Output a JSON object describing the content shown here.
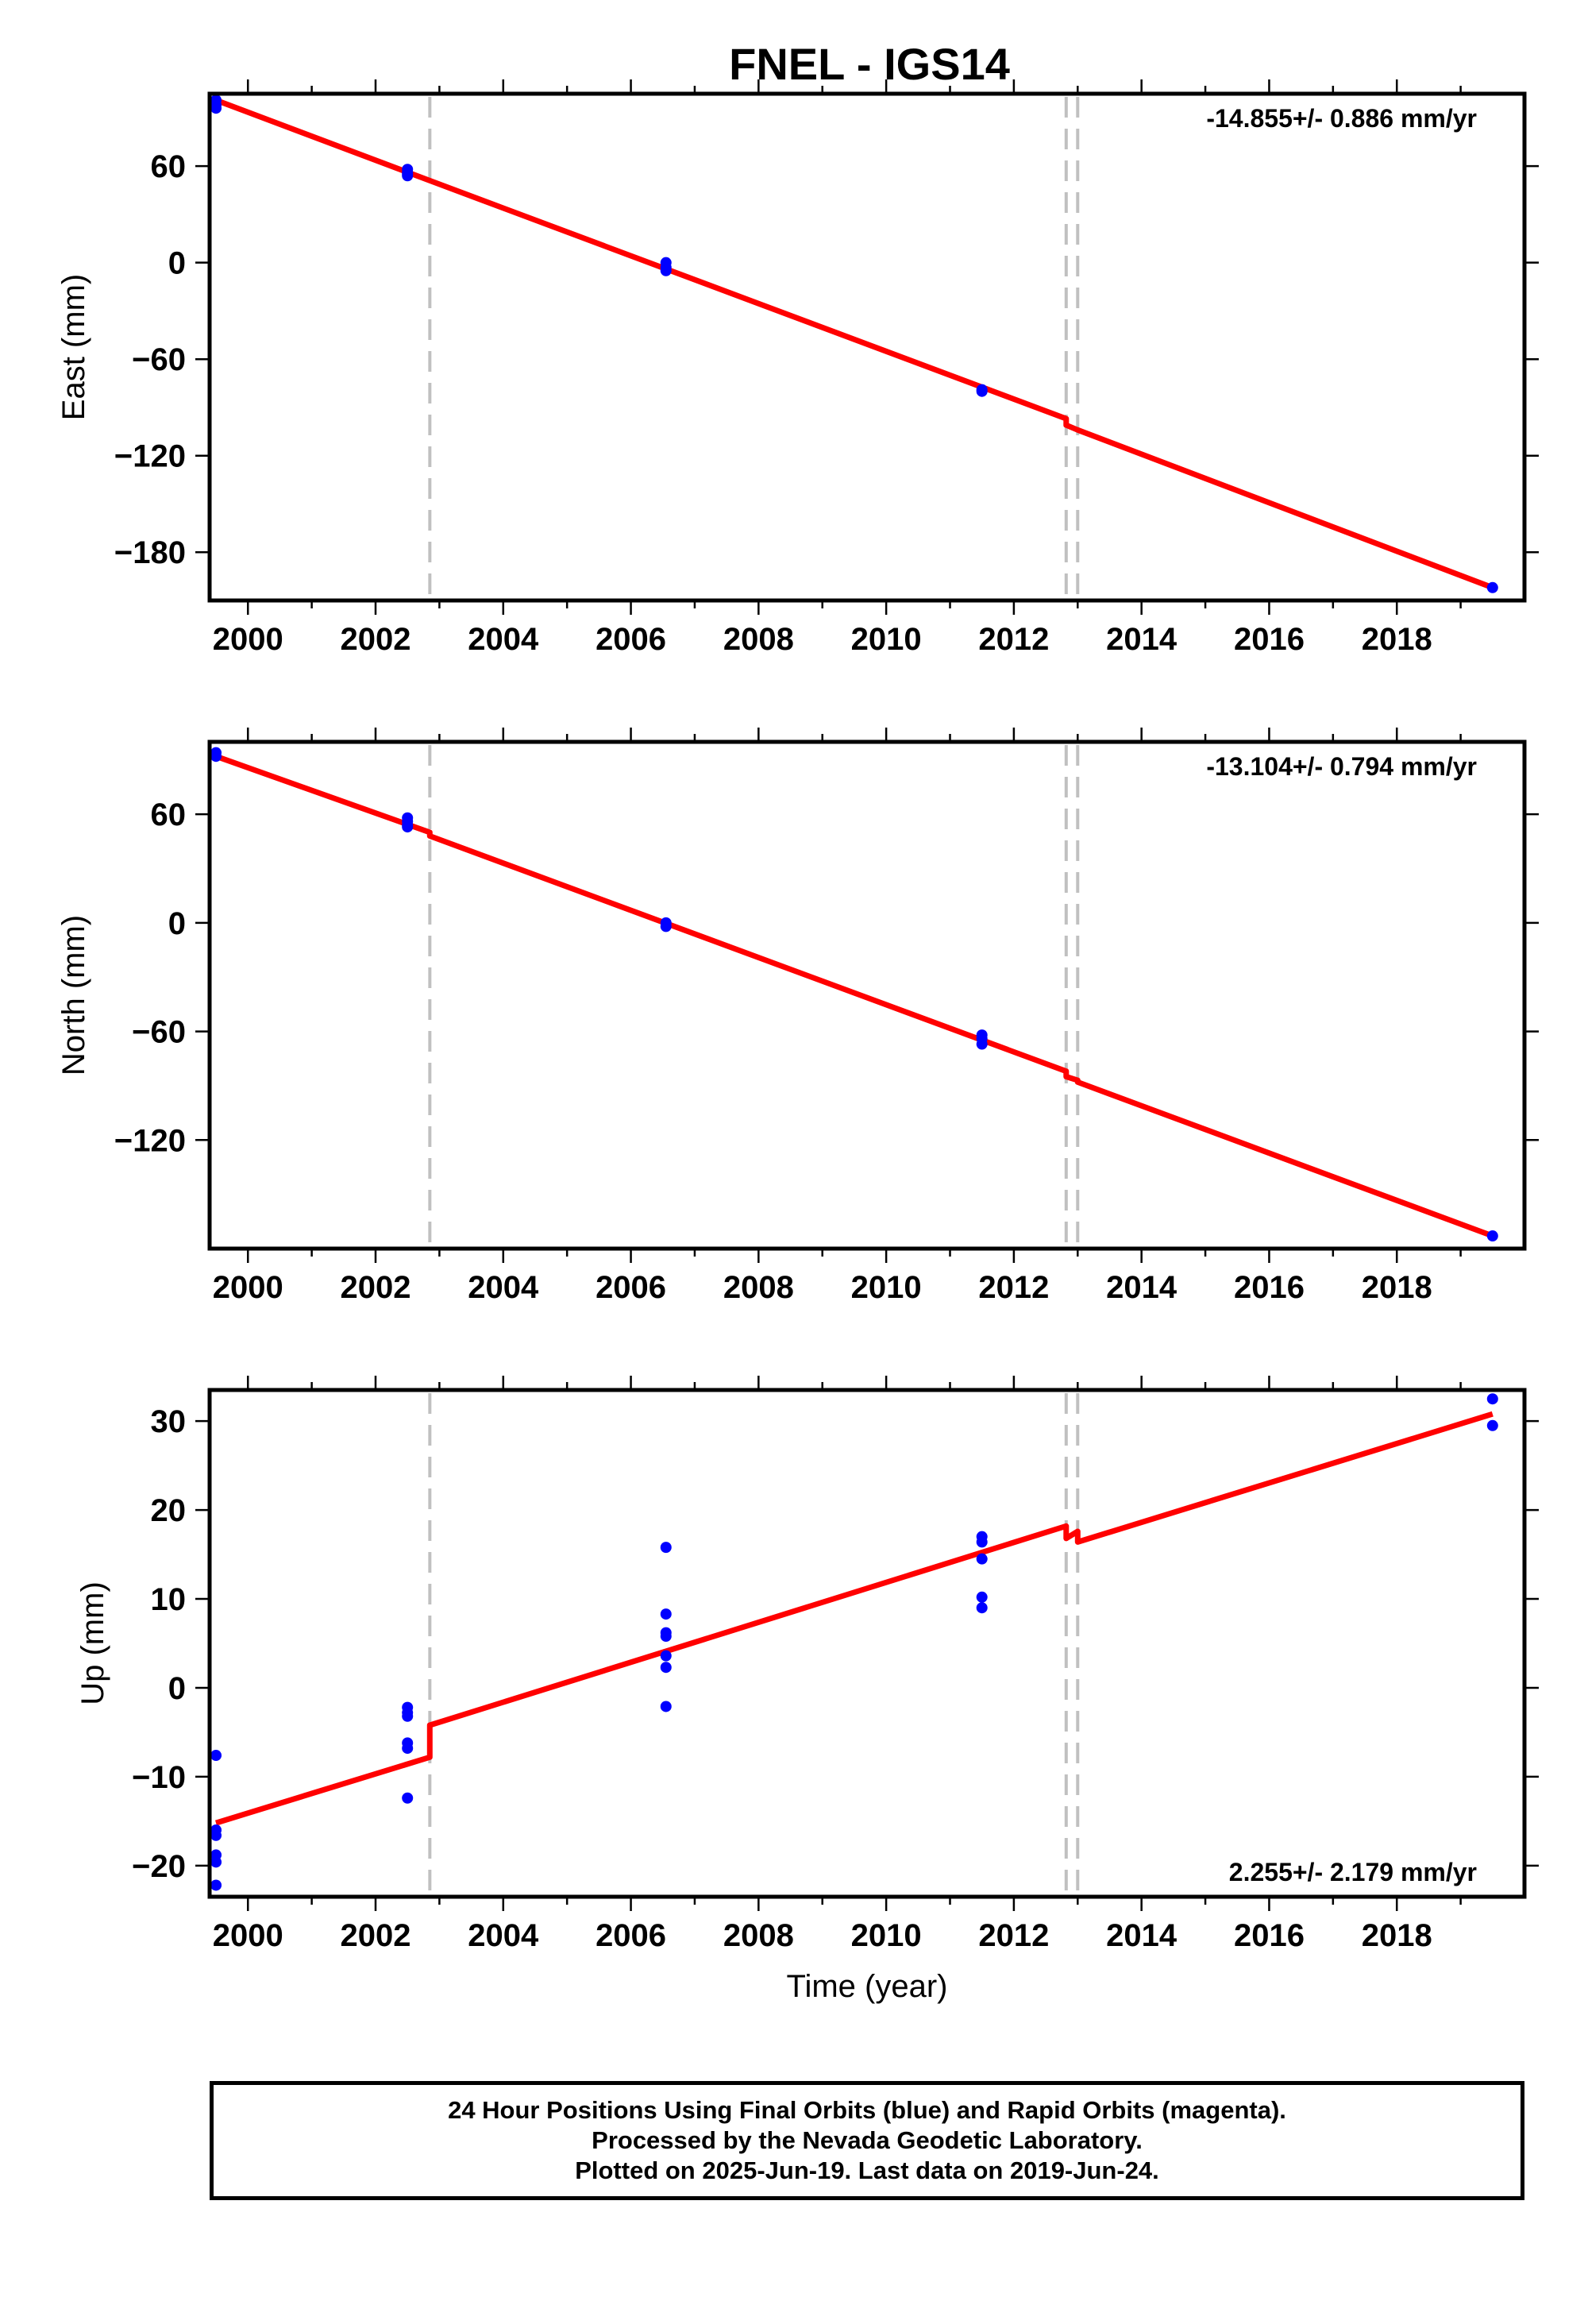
{
  "title": "FNEL - IGS14",
  "colors": {
    "fit": "#ff0000",
    "final_orbits": "#0000ff",
    "rapid_orbits": "#ff00ff",
    "break_line": "#c0c0c0"
  },
  "chart_data": [
    {
      "type": "scatter",
      "component": "east",
      "ylabel": "East (mm)",
      "xlabel": "",
      "xlim": [
        1999.4,
        2020.0
      ],
      "ylim": [
        -210,
        105
      ],
      "xticks": [
        2000,
        2002,
        2004,
        2006,
        2008,
        2010,
        2012,
        2014,
        2016,
        2018
      ],
      "yticks": [
        -180,
        -120,
        -60,
        0,
        60
      ],
      "grid": false,
      "rate_label": "-14.855+/- 0.886 mm/yr",
      "rate_position": "top-right",
      "break_epochs": [
        2002.85,
        2012.82,
        2013.0
      ],
      "fit": {
        "x": [
          1999.5,
          2002.85,
          2002.85,
          2012.82,
          2012.82,
          2013.0,
          2013.0,
          2019.5
        ],
        "y": [
          101.0,
          51.0,
          51.0,
          -97.0,
          -101.0,
          -104.0,
          -104.0,
          -202.0
        ]
      },
      "series": [
        {
          "values": [
            [
              1999.5,
              101
            ],
            [
              1999.5,
              98
            ],
            [
              1999.5,
              96
            ],
            [
              2002.5,
              58
            ],
            [
              2002.5,
              56
            ],
            [
              2002.5,
              55
            ],
            [
              2002.5,
              54
            ],
            [
              2006.55,
              0
            ],
            [
              2006.55,
              -3
            ],
            [
              2006.55,
              -5
            ],
            [
              2011.5,
              -79
            ],
            [
              2011.5,
              -80
            ],
            [
              2019.5,
              -202
            ]
          ]
        }
      ]
    },
    {
      "type": "scatter",
      "component": "north",
      "ylabel": "North (mm)",
      "xlabel": "",
      "xlim": [
        1999.4,
        2020.0
      ],
      "ylim": [
        -180,
        100
      ],
      "xticks": [
        2000,
        2002,
        2004,
        2006,
        2008,
        2010,
        2012,
        2014,
        2016,
        2018
      ],
      "yticks": [
        -120,
        -60,
        0,
        60
      ],
      "grid": false,
      "rate_label": "-13.104+/- 0.794 mm/yr",
      "rate_position": "top-right",
      "break_epochs": [
        2002.85,
        2012.82,
        2013.0
      ],
      "fit": {
        "x": [
          1999.5,
          2002.85,
          2002.85,
          2012.82,
          2012.82,
          2013.0,
          2013.0,
          2019.5
        ],
        "y": [
          92.0,
          50.0,
          48.0,
          -82.0,
          -85.0,
          -87.0,
          -88.0,
          -173.0
        ]
      },
      "series": [
        {
          "values": [
            [
              1999.5,
              94
            ],
            [
              1999.5,
              92
            ],
            [
              2002.5,
              58
            ],
            [
              2002.5,
              56
            ],
            [
              2002.5,
              54
            ],
            [
              2002.5,
              53
            ],
            [
              2006.55,
              0
            ],
            [
              2006.55,
              -2
            ],
            [
              2011.5,
              -62
            ],
            [
              2011.5,
              -64
            ],
            [
              2011.5,
              -67
            ],
            [
              2019.5,
              -173
            ]
          ]
        }
      ]
    },
    {
      "type": "scatter",
      "component": "up",
      "ylabel": "Up (mm)",
      "xlabel": "Time (year)",
      "xlim": [
        1999.4,
        2020.0
      ],
      "ylim": [
        -23.5,
        33.5
      ],
      "xticks": [
        2000,
        2002,
        2004,
        2006,
        2008,
        2010,
        2012,
        2014,
        2016,
        2018
      ],
      "yticks": [
        -20,
        -10,
        0,
        10,
        20,
        30
      ],
      "grid": false,
      "rate_label": "2.255+/- 2.179 mm/yr",
      "rate_position": "bottom-right",
      "break_epochs": [
        2002.85,
        2012.82,
        2013.0
      ],
      "fit": {
        "x": [
          1999.5,
          2002.85,
          2002.85,
          2012.82,
          2012.82,
          2013.0,
          2013.0,
          2019.5
        ],
        "y": [
          -15.2,
          -7.8,
          -4.2,
          18.2,
          16.8,
          17.6,
          16.4,
          30.8
        ]
      },
      "series": [
        {
          "values": [
            [
              1999.5,
              -7.6
            ],
            [
              1999.5,
              -16.0
            ],
            [
              1999.5,
              -16.6
            ],
            [
              1999.5,
              -18.8
            ],
            [
              1999.5,
              -19.6
            ],
            [
              1999.5,
              -22.2
            ],
            [
              2002.5,
              -2.2
            ],
            [
              2002.5,
              -2.8
            ],
            [
              2002.5,
              -3.2
            ],
            [
              2002.5,
              -6.2
            ],
            [
              2002.5,
              -6.8
            ],
            [
              2002.5,
              -12.4
            ],
            [
              2006.55,
              15.8
            ],
            [
              2006.55,
              8.3
            ],
            [
              2006.55,
              6.2
            ],
            [
              2006.55,
              5.8
            ],
            [
              2006.55,
              3.6
            ],
            [
              2006.55,
              2.3
            ],
            [
              2006.55,
              -2.1
            ],
            [
              2011.5,
              17.0
            ],
            [
              2011.5,
              16.4
            ],
            [
              2011.5,
              14.5
            ],
            [
              2011.5,
              10.2
            ],
            [
              2011.5,
              9.0
            ],
            [
              2019.5,
              32.5
            ],
            [
              2019.5,
              29.5
            ]
          ]
        }
      ]
    }
  ],
  "footer": {
    "line1": "24 Hour Positions Using Final Orbits (blue) and Rapid Orbits (magenta).",
    "line2": "Processed by the Nevada Geodetic Laboratory.",
    "line3": "Plotted on 2025-Jun-19. Last data on 2019-Jun-24."
  }
}
